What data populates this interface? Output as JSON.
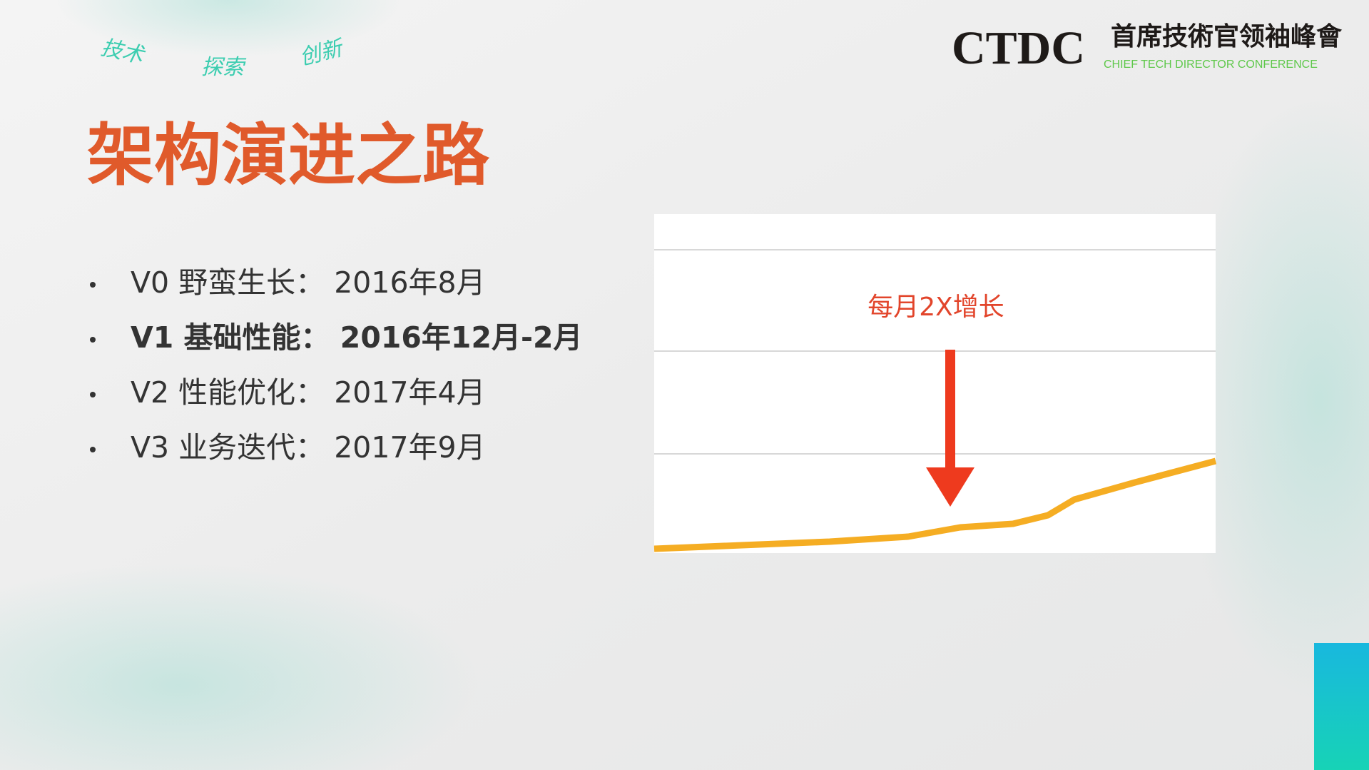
{
  "logo": {
    "name": "CTDC",
    "chinese": "首席技術官领袖峰會",
    "english": "CHIEF TECH DIRECTOR CONFERENCE"
  },
  "slogan": [
    "技术",
    "探索",
    "创新"
  ],
  "title": "架构演进之路",
  "bullets": [
    "V0 野蛮生长： 2016年8月",
    "V1 基础性能： 2016年12月-2月",
    "V2 性能优化： 2017年4月",
    "V3 业务迭代： 2017年9月"
  ],
  "chart": {
    "annotation": "每月2X增长"
  }
}
